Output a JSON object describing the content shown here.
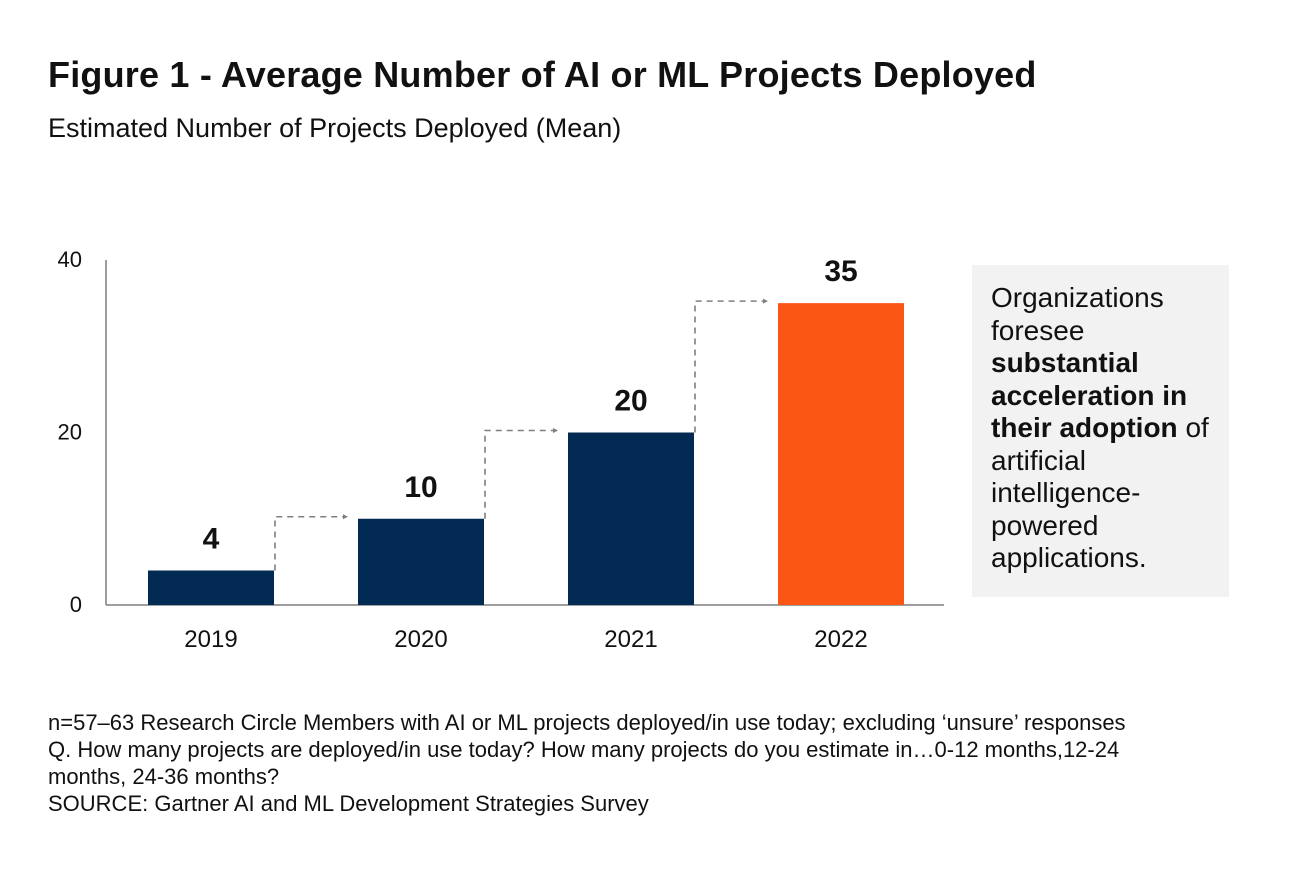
{
  "colors": {
    "bar_default": "#022a52",
    "bar_highlight": "#fc5614",
    "callout_bg": "#f2f2f2",
    "arrow": "#7f7f7f",
    "axis": "#7f7f7f"
  },
  "chart_data": {
    "type": "bar",
    "title": "Figure 1 - Average Number of AI or ML Projects Deployed",
    "subtitle": "Estimated Number of Projects Deployed (Mean)",
    "categories": [
      "2019",
      "2020",
      "2021",
      "2022"
    ],
    "values": [
      4,
      10,
      20,
      35
    ],
    "data_labels": [
      "4",
      "10",
      "20",
      "35"
    ],
    "highlight_index": 3,
    "ylim": [
      0,
      40
    ],
    "yticks": [
      0,
      20,
      40
    ],
    "ytick_labels": [
      "0",
      "20",
      "40"
    ],
    "xlabel": "",
    "ylabel": "",
    "grid": false,
    "legend": "none",
    "annotation": {
      "part1": "Organizations foresee",
      "bold": "substantial acceleration in their adoption",
      "part2": "of artificial intelligence-powered applications."
    }
  },
  "notes": [
    "n=57–63 Research Circle Members with AI or ML projects deployed/in use today; excluding ‘unsure’ responses",
    "Q. How many projects are deployed/in use today? How many projects do you estimate in…0-12 months,12-24",
    "months, 24-36 months?",
    "SOURCE: Gartner AI and ML Development Strategies Survey"
  ]
}
